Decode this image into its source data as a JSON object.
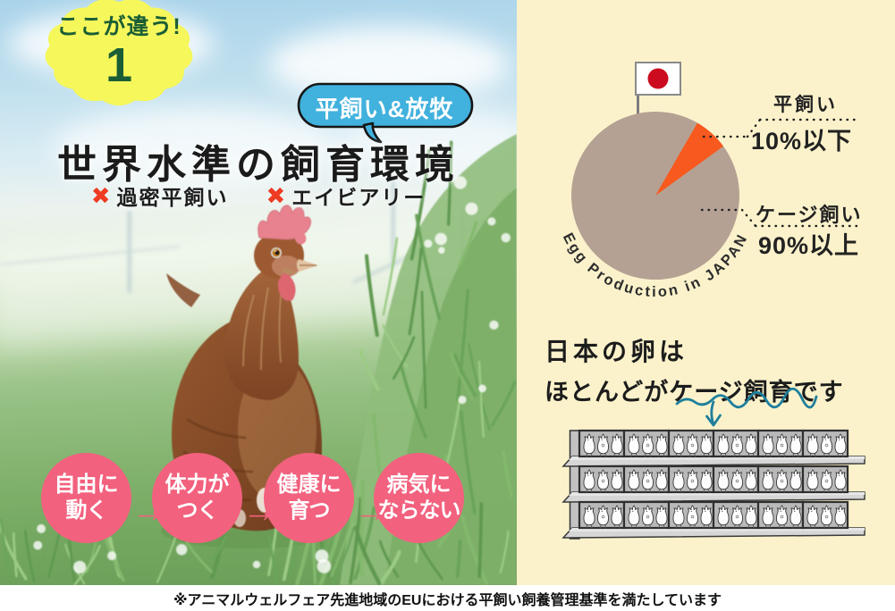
{
  "badge": {
    "label": "ここが違う!",
    "number": "1"
  },
  "bubble": {
    "label": "平飼い&放牧"
  },
  "title": "世界水準の飼育環境",
  "rejected_methods": [
    {
      "label": "過密平飼い"
    },
    {
      "label": "エイビアリー"
    }
  ],
  "benefit_steps": [
    {
      "line1": "自由に",
      "line2": "動く"
    },
    {
      "line1": "体力が",
      "line2": "つく"
    },
    {
      "line1": "健康に",
      "line2": "育つ"
    },
    {
      "line1": "病気に",
      "line2": "ならない"
    }
  ],
  "step_arrow_glyph": "→",
  "chart_data": {
    "type": "pie",
    "title": "Egg Production in JAPAN",
    "slices": [
      {
        "label": "ケージ飼い",
        "value_label": "90%以上",
        "value": 90,
        "color": "#b5a193"
      },
      {
        "label": "平飼い",
        "value_label": "10%以下",
        "value": 10,
        "color": "#f8591e"
      }
    ],
    "flag_icon": "japan-flag",
    "legend_position": "right"
  },
  "cage_note": {
    "line1": "日本の卵は",
    "line2": "ほとんどがケージ飼育です"
  },
  "cage_illustration": {
    "shelves": 3,
    "cages_per_shelf": 6,
    "hens_per_cage": 3
  },
  "footer_note": "※アニマルウェルフェア先進地域のEUにおける平飼い飼養管理基準を満たしています",
  "colors": {
    "cream_bg": "#fbf2cb",
    "pie_main": "#b5a193",
    "pie_accent": "#f8591e",
    "pink": "#f2617e",
    "yellow": "#f5f75b",
    "badge_green": "#1b5e35",
    "bubble_blue": "#41b1dd",
    "x_red": "#ee3b22",
    "wave_teal": "#1e7f9d",
    "flag_red": "#cc0c1e"
  }
}
